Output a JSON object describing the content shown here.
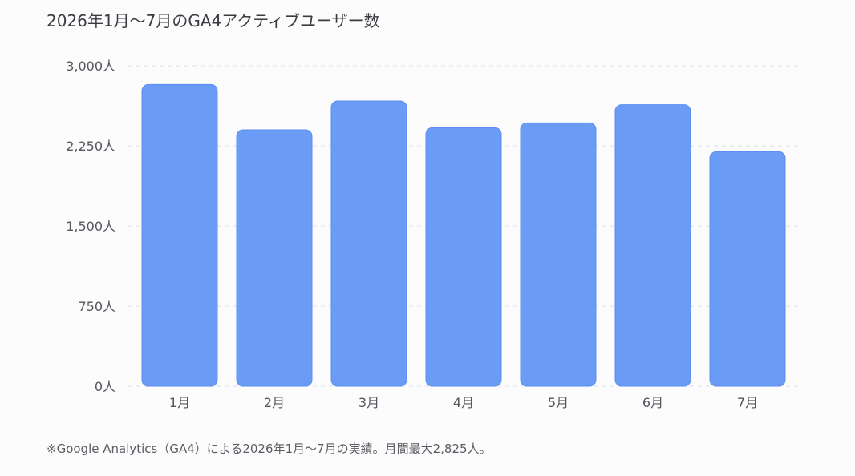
{
  "chart_data": {
    "type": "bar",
    "title": "2026年1月〜7月のGA4アクティブユーザー数",
    "categories": [
      "1月",
      "2月",
      "3月",
      "4月",
      "5月",
      "6月",
      "7月"
    ],
    "series": [
      {
        "values": [
          2825,
          2400,
          2670,
          2420,
          2465,
          2635,
          2195
        ]
      }
    ],
    "ylim": [
      0,
      3000
    ],
    "yticks": [
      0,
      750,
      1500,
      2250,
      3000
    ],
    "ytick_labels": [
      "0人",
      "750人",
      "1,500人",
      "2,250人",
      "3,000人"
    ],
    "xlabel": "",
    "ylabel": "",
    "grid": true,
    "bar_color": "#6a9cf5",
    "grid_color": "#e2e4e8"
  },
  "footnote": "※Google Analytics（GA4）による2026年1月〜7月の実績。月間最大2,825人。"
}
